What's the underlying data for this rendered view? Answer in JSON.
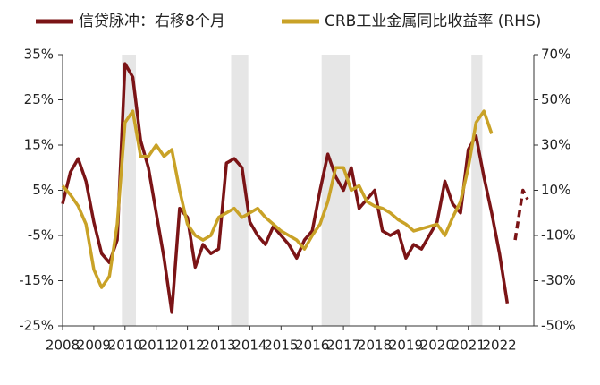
{
  "chart_data": {
    "type": "line",
    "legend_position": "top",
    "shaded_periods": [
      [
        2009.9,
        2010.35
      ],
      [
        2013.4,
        2013.95
      ],
      [
        2016.3,
        2017.2
      ],
      [
        2021.1,
        2021.45
      ]
    ],
    "shade_color": "#e6e6e6",
    "xlim": [
      2008,
      2023.1
    ],
    "xticks": [
      2008,
      2009,
      2010,
      2011,
      2012,
      2013,
      2014,
      2015,
      2016,
      2017,
      2018,
      2019,
      2020,
      2021,
      2022
    ],
    "ylim": [
      -25,
      35
    ],
    "yticks": [
      {
        "value": -25,
        "label": "-25%"
      },
      {
        "value": -15,
        "label": "-15%"
      },
      {
        "value": -5,
        "label": "-5%"
      },
      {
        "value": 5,
        "label": "5%"
      },
      {
        "value": 15,
        "label": "15%"
      },
      {
        "value": 25,
        "label": "25%"
      },
      {
        "value": 35,
        "label": "35%"
      }
    ],
    "y2lim": [
      -50,
      70
    ],
    "y2ticks": [
      {
        "value": -50,
        "label": "-50%"
      },
      {
        "value": -30,
        "label": "-30%"
      },
      {
        "value": -10,
        "label": "-10%"
      },
      {
        "value": 10,
        "label": "10%"
      },
      {
        "value": 30,
        "label": "30%"
      },
      {
        "value": 50,
        "label": "50%"
      },
      {
        "value": 70,
        "label": "70%"
      }
    ],
    "series": [
      {
        "name": "信贷脉冲：右移8个月",
        "color": "#7b1416",
        "dashed_from_x": 2022.4,
        "x": [
          2008.0,
          2008.25,
          2008.5,
          2008.75,
          2009.0,
          2009.25,
          2009.5,
          2009.75,
          2010.0,
          2010.25,
          2010.5,
          2010.75,
          2011.0,
          2011.25,
          2011.5,
          2011.75,
          2012.0,
          2012.25,
          2012.5,
          2012.75,
          2013.0,
          2013.25,
          2013.5,
          2013.75,
          2014.0,
          2014.25,
          2014.5,
          2014.75,
          2015.0,
          2015.25,
          2015.5,
          2015.75,
          2016.0,
          2016.25,
          2016.5,
          2016.75,
          2017.0,
          2017.25,
          2017.5,
          2017.75,
          2018.0,
          2018.25,
          2018.5,
          2018.75,
          2019.0,
          2019.25,
          2019.5,
          2019.75,
          2020.0,
          2020.25,
          2020.5,
          2020.75,
          2021.0,
          2021.25,
          2021.5,
          2021.75,
          2022.0,
          2022.25,
          2022.5,
          2022.75,
          2022.9
        ],
        "values": [
          2,
          9,
          12,
          7,
          -2,
          -9,
          -11,
          -6,
          33,
          30,
          16,
          10,
          0,
          -10,
          -22,
          1,
          -1,
          -12,
          -7,
          -9,
          -8,
          11,
          12,
          10,
          -2,
          -5,
          -7,
          -3,
          -5,
          -7,
          -10,
          -6,
          -4,
          5,
          13,
          8,
          5,
          10,
          1,
          3,
          5,
          -4,
          -5,
          -4,
          -10,
          -7,
          -8,
          -5,
          -2,
          7,
          2,
          0,
          14,
          17,
          8,
          0,
          -9,
          -20,
          -6,
          5,
          3
        ]
      },
      {
        "name": "CRB工业金属同比收益率 (RHS)",
        "color": "#c9a227",
        "axis": "y2",
        "x": [
          2008.0,
          2008.25,
          2008.5,
          2008.75,
          2009.0,
          2009.25,
          2009.5,
          2009.75,
          2010.0,
          2010.25,
          2010.5,
          2010.75,
          2011.0,
          2011.25,
          2011.5,
          2011.75,
          2012.0,
          2012.25,
          2012.5,
          2012.75,
          2013.0,
          2013.25,
          2013.5,
          2013.75,
          2014.0,
          2014.25,
          2014.5,
          2014.75,
          2015.0,
          2015.25,
          2015.5,
          2015.75,
          2016.0,
          2016.25,
          2016.5,
          2016.75,
          2017.0,
          2017.25,
          2017.5,
          2017.75,
          2018.0,
          2018.25,
          2018.5,
          2018.75,
          2019.0,
          2019.25,
          2019.5,
          2019.75,
          2020.0,
          2020.25,
          2020.5,
          2020.75,
          2021.0,
          2021.25,
          2021.5,
          2021.75
        ],
        "values": [
          12,
          8,
          3,
          -5,
          -25,
          -33,
          -28,
          -5,
          40,
          45,
          25,
          25,
          30,
          25,
          28,
          10,
          -5,
          -10,
          -12,
          -10,
          -2,
          0,
          2,
          -2,
          0,
          2,
          -2,
          -5,
          -8,
          -10,
          -12,
          -16,
          -10,
          -5,
          5,
          20,
          20,
          10,
          12,
          5,
          3,
          2,
          0,
          -3,
          -5,
          -8,
          -7,
          -6,
          -5,
          -10,
          -2,
          5,
          20,
          40,
          45,
          35
        ]
      }
    ]
  }
}
